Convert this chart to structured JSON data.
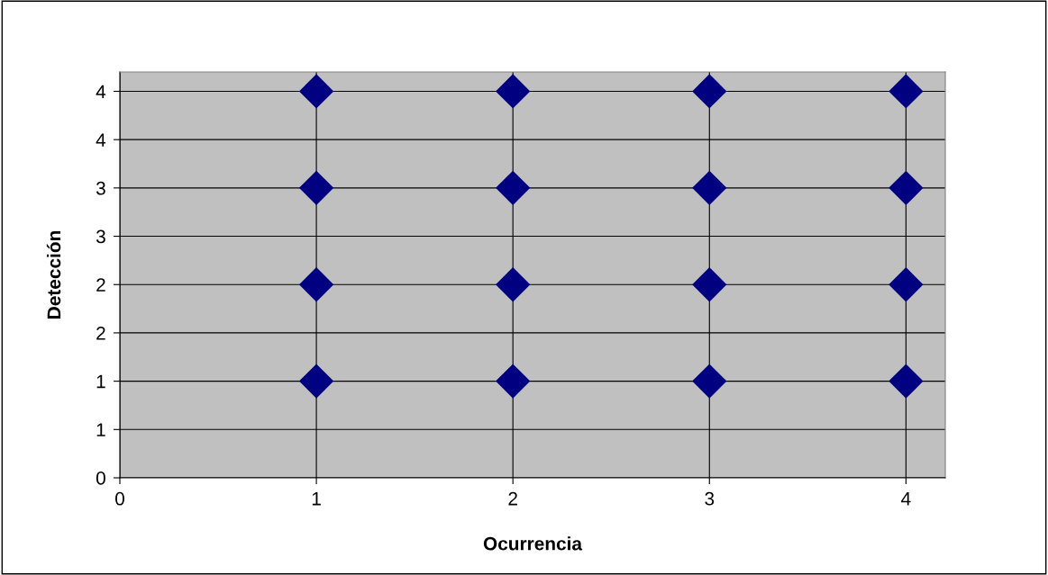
{
  "chart_data": {
    "type": "scatter",
    "xlabel": "Ocurrencia",
    "ylabel": "Detección",
    "x": [
      1,
      1,
      1,
      1,
      2,
      2,
      2,
      2,
      3,
      3,
      3,
      3,
      4,
      4,
      4,
      4
    ],
    "values": [
      1,
      2,
      3,
      4,
      1,
      2,
      3,
      4,
      1,
      2,
      3,
      4,
      1,
      2,
      3,
      4
    ],
    "color": "#000080",
    "marker": "diamond",
    "grid": true,
    "xlim": [
      0,
      4.2
    ],
    "xticks": [
      0,
      1,
      2,
      3,
      4
    ],
    "ylim": [
      0,
      4.2
    ],
    "yticks": [
      0,
      {
        "value": 0.5,
        "label": "1"
      },
      1,
      {
        "value": 1.5,
        "label": "2"
      },
      2,
      {
        "value": 2.5,
        "label": "3"
      },
      3,
      {
        "value": 3.5,
        "label": "4"
      },
      4
    ]
  }
}
